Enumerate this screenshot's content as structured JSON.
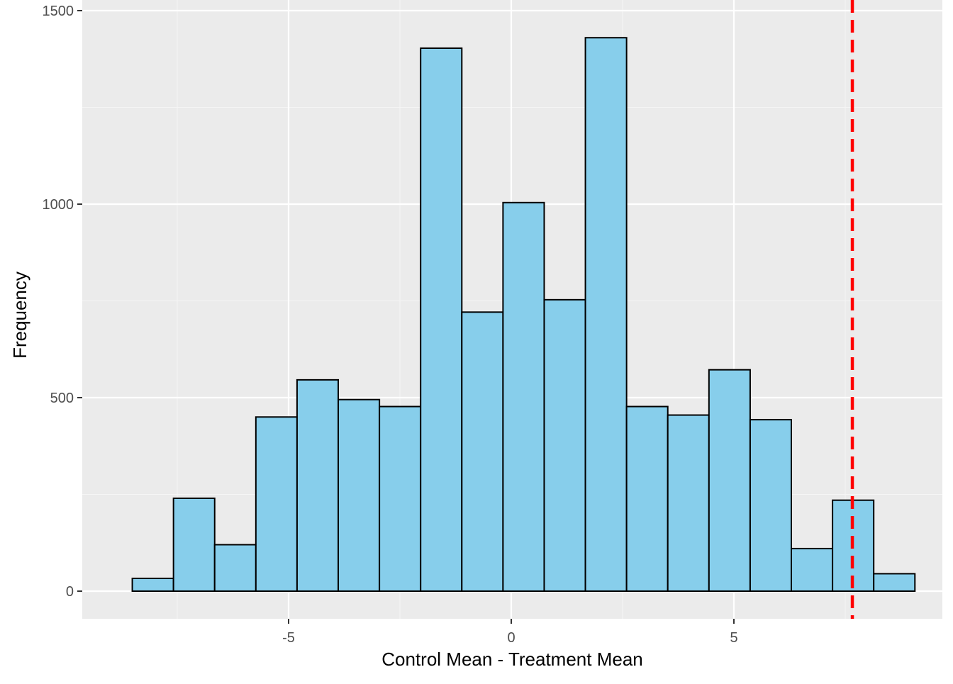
{
  "chart_data": {
    "type": "histogram",
    "xlabel": "Control Mean - Treatment Mean",
    "ylabel": "Frequency",
    "xlim": [
      -9.1,
      9.7
    ],
    "ylim": [
      -70,
      1500
    ],
    "x_ticks": [
      {
        "value": -5,
        "label": "-5"
      },
      {
        "value": 0,
        "label": "0"
      },
      {
        "value": 5,
        "label": "5"
      }
    ],
    "y_ticks": [
      {
        "value": 0,
        "label": "0"
      },
      {
        "value": 500,
        "label": "500"
      },
      {
        "value": 1000,
        "label": "1000"
      },
      {
        "value": 1500,
        "label": "1500"
      }
    ],
    "x_minor_breaks": [
      -7.5,
      -2.5,
      2.5,
      7.5
    ],
    "y_minor_breaks": [
      250,
      750,
      1250
    ],
    "bin_width": 0.925,
    "bins": [
      {
        "x0": -8.51,
        "x1": -7.585,
        "count": 33
      },
      {
        "x0": -7.585,
        "x1": -6.66,
        "count": 240
      },
      {
        "x0": -6.66,
        "x1": -5.735,
        "count": 120
      },
      {
        "x0": -5.735,
        "x1": -4.81,
        "count": 450
      },
      {
        "x0": -4.81,
        "x1": -3.885,
        "count": 546
      },
      {
        "x0": -3.885,
        "x1": -2.96,
        "count": 495
      },
      {
        "x0": -2.96,
        "x1": -2.035,
        "count": 477
      },
      {
        "x0": -2.035,
        "x1": -1.11,
        "count": 1403
      },
      {
        "x0": -1.11,
        "x1": -0.185,
        "count": 721
      },
      {
        "x0": -0.185,
        "x1": 0.74,
        "count": 1004
      },
      {
        "x0": 0.74,
        "x1": 1.665,
        "count": 753
      },
      {
        "x0": 1.665,
        "x1": 2.59,
        "count": 1430
      },
      {
        "x0": 2.59,
        "x1": 3.515,
        "count": 477
      },
      {
        "x0": 3.515,
        "x1": 4.44,
        "count": 455
      },
      {
        "x0": 4.44,
        "x1": 5.365,
        "count": 572
      },
      {
        "x0": 5.365,
        "x1": 6.29,
        "count": 443
      },
      {
        "x0": 6.29,
        "x1": 7.215,
        "count": 110
      },
      {
        "x0": 7.215,
        "x1": 8.14,
        "count": 235
      },
      {
        "x0": 8.14,
        "x1": 9.065,
        "count": 45
      }
    ],
    "reference_line": {
      "x": 7.66,
      "style": "dashed",
      "color": "#ff0000"
    },
    "grid": true,
    "colors": {
      "panel_background": "#ebebeb",
      "grid_major": "#ffffff",
      "grid_minor": "#f5f5f5",
      "bar_fill": "#87ceeb",
      "bar_outline": "#000000",
      "reference_line": "#ff0000"
    }
  }
}
